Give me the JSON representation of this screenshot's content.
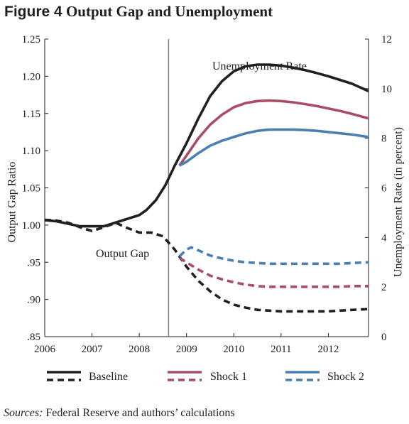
{
  "figure": {
    "number": "Figure 4",
    "title": "Output Gap and Unemployment"
  },
  "sources": {
    "label": "Sources:",
    "text": "Federal Reserve and authors’ calculations"
  },
  "colors": {
    "baseline": "#231f20",
    "shock1": "#a84e64",
    "shock2": "#4a7fb0",
    "axis": "#231f20",
    "vline": "#808080"
  },
  "chart_data": {
    "type": "line",
    "xlabel": "",
    "ylabel_left": "Output Gap Ratio",
    "ylabel_right": "Unemployment Rate (in percent)",
    "xlim": [
      2006,
      2012.85
    ],
    "ylim_left": [
      0.85,
      1.25
    ],
    "ylim_right": [
      0,
      12
    ],
    "x_ticks": [
      2006,
      2007,
      2008,
      2009,
      2010,
      2011,
      2012
    ],
    "x_tick_labels": [
      "2006",
      "2007",
      "2008",
      "2009",
      "2010",
      "2011",
      "2012"
    ],
    "y_left_ticks": [
      0.85,
      0.9,
      0.95,
      1.0,
      1.05,
      1.1,
      1.15,
      1.2,
      1.25
    ],
    "y_left_tick_labels": [
      ".85",
      ".90",
      ".95",
      "1.00",
      "1.05",
      "1.10",
      "1.15",
      "1.20",
      "1.25"
    ],
    "y_right_ticks": [
      0,
      2,
      4,
      6,
      8,
      10,
      12
    ],
    "y_right_tick_labels": [
      "0",
      "2",
      "4",
      "6",
      "8",
      "10",
      "12"
    ],
    "vertical_marker_x": 2008.62,
    "annotations": {
      "unemployment": "Unemployment Rate",
      "output_gap": "Output Gap"
    },
    "grid": false,
    "legend": {
      "placement": "bottom",
      "items": [
        {
          "label": "Baseline",
          "key": "baseline"
        },
        {
          "label": "Shock 1",
          "key": "shock1"
        },
        {
          "label": "Shock 2",
          "key": "shock2"
        }
      ]
    },
    "series": [
      {
        "name": "Baseline",
        "key": "baseline",
        "measure": "Unemployment Rate",
        "axis": "right",
        "style": "solid",
        "x": [
          2006.0,
          2006.25,
          2006.5,
          2006.75,
          2007.0,
          2007.25,
          2007.5,
          2007.75,
          2008.0,
          2008.15,
          2008.35,
          2008.55,
          2008.75,
          2009.0,
          2009.25,
          2009.5,
          2009.75,
          2010.0,
          2010.25,
          2010.5,
          2010.75,
          2011.0,
          2011.25,
          2011.5,
          2011.75,
          2012.0,
          2012.25,
          2012.5,
          2012.85
        ],
        "y": [
          4.7,
          4.65,
          4.55,
          4.45,
          4.45,
          4.45,
          4.6,
          4.75,
          4.9,
          5.1,
          5.5,
          6.1,
          6.9,
          7.8,
          8.8,
          9.7,
          10.3,
          10.7,
          10.9,
          10.97,
          10.97,
          10.93,
          10.85,
          10.75,
          10.63,
          10.5,
          10.35,
          10.2,
          9.9
        ]
      },
      {
        "name": "Shock 1",
        "key": "shock1",
        "measure": "Unemployment Rate",
        "axis": "right",
        "style": "solid",
        "x": [
          2008.85,
          2009.0,
          2009.25,
          2009.5,
          2009.75,
          2010.0,
          2010.25,
          2010.5,
          2010.75,
          2011.0,
          2011.25,
          2011.5,
          2011.75,
          2012.0,
          2012.25,
          2012.5,
          2012.85
        ],
        "y": [
          6.9,
          7.3,
          8.0,
          8.55,
          8.95,
          9.25,
          9.42,
          9.5,
          9.52,
          9.5,
          9.45,
          9.38,
          9.3,
          9.2,
          9.1,
          8.98,
          8.8
        ]
      },
      {
        "name": "Shock 2",
        "key": "shock2",
        "measure": "Unemployment Rate",
        "axis": "right",
        "style": "solid",
        "x": [
          2008.85,
          2009.0,
          2009.25,
          2009.5,
          2009.75,
          2010.0,
          2010.25,
          2010.5,
          2010.75,
          2011.0,
          2011.25,
          2011.5,
          2011.75,
          2012.0,
          2012.25,
          2012.5,
          2012.85
        ],
        "y": [
          6.9,
          7.05,
          7.4,
          7.7,
          7.9,
          8.05,
          8.2,
          8.3,
          8.35,
          8.35,
          8.35,
          8.33,
          8.3,
          8.25,
          8.2,
          8.15,
          8.05
        ]
      },
      {
        "name": "Baseline",
        "key": "baseline",
        "measure": "Output Gap",
        "axis": "left",
        "style": "dashed",
        "x": [
          2006.0,
          2006.25,
          2006.5,
          2006.75,
          2007.0,
          2007.25,
          2007.5,
          2007.75,
          2008.0,
          2008.25,
          2008.5,
          2008.75,
          2009.0,
          2009.25,
          2009.5,
          2009.75,
          2010.0,
          2010.25,
          2010.5,
          2010.75,
          2011.0,
          2011.25,
          2011.5,
          2011.75,
          2012.0,
          2012.25,
          2012.5,
          2012.85
        ],
        "y": [
          1.007,
          1.006,
          1.003,
          0.997,
          0.992,
          0.997,
          1.003,
          0.996,
          0.99,
          0.99,
          0.985,
          0.967,
          0.944,
          0.925,
          0.911,
          0.9,
          0.893,
          0.889,
          0.886,
          0.885,
          0.884,
          0.884,
          0.884,
          0.884,
          0.884,
          0.885,
          0.886,
          0.887
        ]
      },
      {
        "name": "Shock 1",
        "key": "shock1",
        "measure": "Output Gap",
        "axis": "left",
        "style": "dashed",
        "x": [
          2008.85,
          2009.0,
          2009.25,
          2009.5,
          2009.75,
          2010.0,
          2010.25,
          2010.5,
          2010.75,
          2011.0,
          2011.25,
          2011.5,
          2011.75,
          2012.0,
          2012.25,
          2012.5,
          2012.85
        ],
        "y": [
          0.956,
          0.95,
          0.94,
          0.932,
          0.927,
          0.923,
          0.92,
          0.918,
          0.917,
          0.917,
          0.917,
          0.917,
          0.917,
          0.917,
          0.917,
          0.918,
          0.918
        ]
      },
      {
        "name": "Shock 2",
        "key": "shock2",
        "measure": "Output Gap",
        "axis": "left",
        "style": "dashed",
        "x": [
          2008.85,
          2009.0,
          2009.1,
          2009.25,
          2009.5,
          2009.75,
          2010.0,
          2010.25,
          2010.5,
          2010.75,
          2011.0,
          2011.25,
          2011.5,
          2011.75,
          2012.0,
          2012.25,
          2012.5,
          2012.85
        ],
        "y": [
          0.958,
          0.967,
          0.97,
          0.966,
          0.959,
          0.955,
          0.952,
          0.95,
          0.949,
          0.948,
          0.948,
          0.948,
          0.948,
          0.948,
          0.948,
          0.948,
          0.949,
          0.95
        ]
      }
    ]
  }
}
